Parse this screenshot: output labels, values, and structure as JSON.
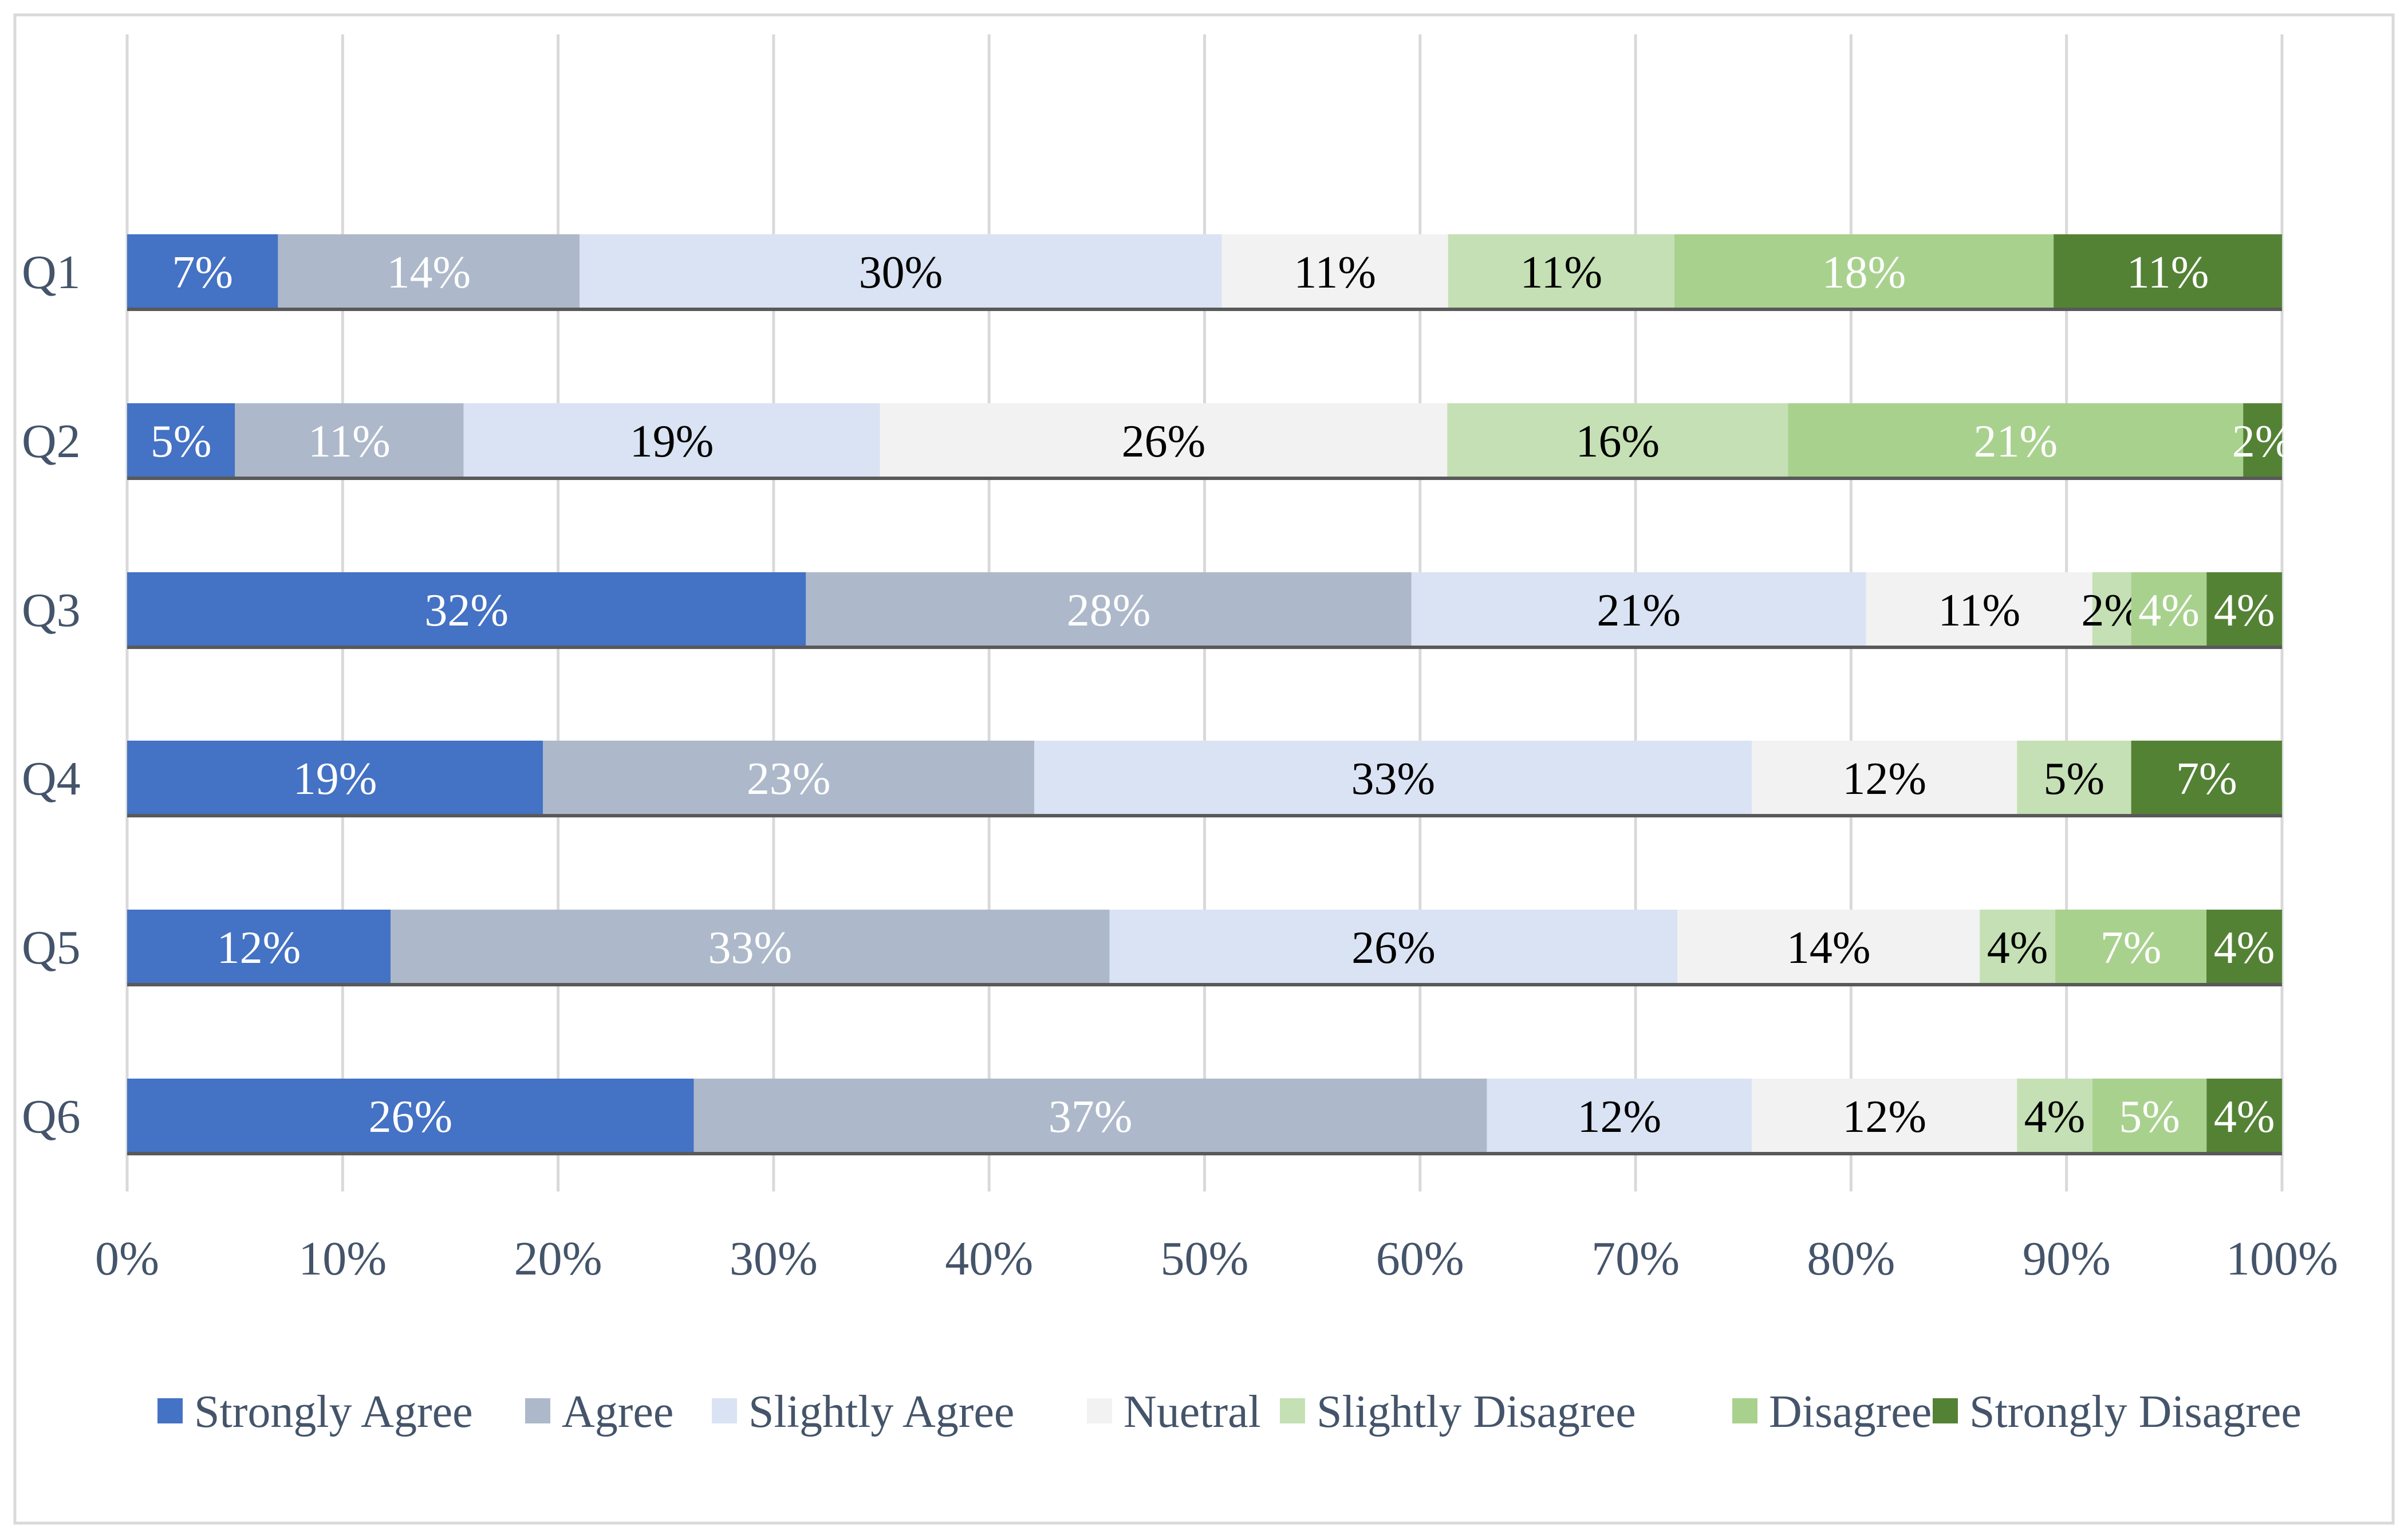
{
  "chart_data": {
    "type": "bar",
    "orientation": "horizontal",
    "stacked": "percent",
    "title": "",
    "xlabel": "",
    "ylabel": "",
    "xlim": [
      0,
      100
    ],
    "x_ticks": [
      "0%",
      "10%",
      "20%",
      "30%",
      "40%",
      "50%",
      "60%",
      "70%",
      "80%",
      "90%",
      "100%"
    ],
    "grid": "vertical",
    "legend_position": "bottom",
    "categories": [
      "Q1",
      "Q2",
      "Q3",
      "Q4",
      "Q5",
      "Q6"
    ],
    "series": [
      {
        "name": "Strongly Agree",
        "color": "#4472C4",
        "label_color": "#ffffff",
        "values": [
          7,
          5,
          31.5,
          19.3,
          12.2,
          26.3
        ],
        "labels": [
          "7%",
          "5%",
          "32%",
          "19%",
          "12%",
          "26%"
        ]
      },
      {
        "name": "Agree",
        "color": "#ADB9CA",
        "label_color": "#ffffff",
        "values": [
          14,
          10.6,
          28.1,
          22.8,
          33.3,
          36.8
        ],
        "labels": [
          "14%",
          "11%",
          "28%",
          "23%",
          "33%",
          "37%"
        ]
      },
      {
        "name": "Slightly Agree",
        "color": "#DAE3F3",
        "label_color": "#000000",
        "values": [
          29.8,
          19.3,
          21.1,
          33.3,
          26.3,
          12.3
        ],
        "labels": [
          "30%",
          "19%",
          "21%",
          "33%",
          "26%",
          "12%"
        ]
      },
      {
        "name": "Nuetral",
        "color": "#F2F2F2",
        "label_color": "#000000",
        "values": [
          10.5,
          26.3,
          10.5,
          12.3,
          14,
          12.3
        ],
        "labels": [
          "11%",
          "26%",
          "11%",
          "12%",
          "14%",
          "12%"
        ]
      },
      {
        "name": "Slightly Disagree",
        "color": "#C5E0B4",
        "label_color": "#000000",
        "values": [
          10.5,
          15.8,
          1.8,
          5.3,
          3.5,
          3.5
        ],
        "labels": [
          "11%",
          "16%",
          "2%",
          "5%",
          "4%",
          "4%"
        ]
      },
      {
        "name": "Disagree",
        "color": "#A9D18E",
        "label_color": "#ffffff",
        "values": [
          17.6,
          21.1,
          3.5,
          0,
          7,
          5.3
        ],
        "labels": [
          "18%",
          "21%",
          "4%",
          "",
          "7%",
          "5%"
        ]
      },
      {
        "name": "Strongly Disagree",
        "color": "#548235",
        "label_color": "#ffffff",
        "values": [
          10.6,
          1.8,
          3.5,
          7,
          3.5,
          3.5
        ],
        "labels": [
          "11%",
          "2%",
          "4%",
          "7%",
          "4%",
          "4%"
        ]
      }
    ]
  }
}
